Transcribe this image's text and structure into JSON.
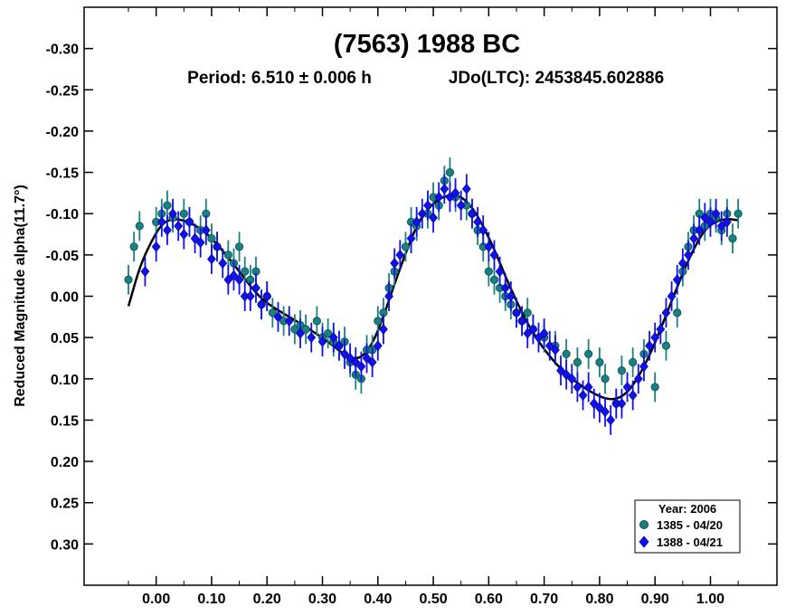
{
  "chart_data": {
    "type": "scatter",
    "title": "(7563) 1988 BC",
    "subtitle_period": "Period: 6.510 ± 0.006 h",
    "subtitle_epoch": "JDo(LTC): 2453845.602886",
    "xlabel": "",
    "ylabel": "Reduced Magnitude alpha(11.7°)",
    "xlim": [
      -0.13,
      1.12
    ],
    "ylim": [
      0.35,
      -0.35
    ],
    "y_inverted": true,
    "x_ticks": [
      "0.00",
      "0.10",
      "0.20",
      "0.30",
      "0.40",
      "0.50",
      "0.60",
      "0.70",
      "0.80",
      "0.90",
      "1.00"
    ],
    "y_ticks": [
      "-0.30",
      "-0.25",
      "-0.20",
      "-0.15",
      "-0.10",
      "-0.05",
      "0.00",
      "0.05",
      "0.10",
      "0.15",
      "0.20",
      "0.25",
      "0.30"
    ],
    "grid": false,
    "legend_position": "bottom-right",
    "legend_title": "Year: 2006",
    "series": [
      {
        "name": "1385 - 04/20",
        "marker": "circle",
        "color": "#1a8080",
        "points": [
          [
            -0.05,
            -0.02
          ],
          [
            -0.04,
            -0.06
          ],
          [
            -0.03,
            -0.085
          ],
          [
            0.0,
            -0.09
          ],
          [
            0.01,
            -0.1
          ],
          [
            0.02,
            -0.11
          ],
          [
            0.03,
            -0.095
          ],
          [
            0.05,
            -0.1
          ],
          [
            0.06,
            -0.09
          ],
          [
            0.08,
            -0.08
          ],
          [
            0.09,
            -0.1
          ],
          [
            0.1,
            -0.07
          ],
          [
            0.11,
            -0.06
          ],
          [
            0.13,
            -0.05
          ],
          [
            0.14,
            -0.04
          ],
          [
            0.15,
            -0.06
          ],
          [
            0.16,
            -0.03
          ],
          [
            0.17,
            -0.02
          ],
          [
            0.18,
            -0.03
          ],
          [
            0.19,
            0.01
          ],
          [
            0.2,
            0.0
          ],
          [
            0.21,
            0.02
          ],
          [
            0.23,
            0.03
          ],
          [
            0.25,
            0.04
          ],
          [
            0.26,
            0.035
          ],
          [
            0.27,
            0.04
          ],
          [
            0.29,
            0.03
          ],
          [
            0.3,
            0.05
          ],
          [
            0.31,
            0.045
          ],
          [
            0.32,
            0.055
          ],
          [
            0.33,
            0.06
          ],
          [
            0.34,
            0.055
          ],
          [
            0.35,
            0.08
          ],
          [
            0.36,
            0.095
          ],
          [
            0.37,
            0.1
          ],
          [
            0.38,
            0.065
          ],
          [
            0.39,
            0.065
          ],
          [
            0.4,
            0.03
          ],
          [
            0.41,
            0.02
          ],
          [
            0.42,
            -0.01
          ],
          [
            0.43,
            -0.03
          ],
          [
            0.45,
            -0.06
          ],
          [
            0.46,
            -0.09
          ],
          [
            0.47,
            -0.085
          ],
          [
            0.49,
            -0.1
          ],
          [
            0.5,
            -0.12
          ],
          [
            0.51,
            -0.11
          ],
          [
            0.52,
            -0.14
          ],
          [
            0.53,
            -0.15
          ],
          [
            0.54,
            -0.12
          ],
          [
            0.56,
            -0.11
          ],
          [
            0.57,
            -0.1
          ],
          [
            0.58,
            -0.08
          ],
          [
            0.59,
            -0.06
          ],
          [
            0.6,
            -0.03
          ],
          [
            0.61,
            -0.02
          ],
          [
            0.62,
            -0.01
          ],
          [
            0.63,
            0.0
          ],
          [
            0.64,
            0.01
          ],
          [
            0.65,
            0.02
          ],
          [
            0.66,
            0.03
          ],
          [
            0.67,
            0.02
          ],
          [
            0.68,
            0.04
          ],
          [
            0.7,
            0.05
          ],
          [
            0.72,
            0.06
          ],
          [
            0.74,
            0.07
          ],
          [
            0.76,
            0.08
          ],
          [
            0.78,
            0.07
          ],
          [
            0.8,
            0.08
          ],
          [
            0.81,
            0.1
          ],
          [
            0.83,
            0.13
          ],
          [
            0.84,
            0.09
          ],
          [
            0.86,
            0.08
          ],
          [
            0.88,
            0.07
          ],
          [
            0.9,
            0.11
          ],
          [
            0.92,
            0.06
          ],
          [
            0.94,
            0.02
          ],
          [
            0.95,
            -0.03
          ],
          [
            0.96,
            -0.06
          ],
          [
            0.97,
            -0.08
          ],
          [
            0.98,
            -0.1
          ],
          [
            0.99,
            -0.085
          ],
          [
            1.0,
            -0.1
          ],
          [
            1.01,
            -0.095
          ],
          [
            1.02,
            -0.08
          ],
          [
            1.03,
            -0.1
          ],
          [
            1.04,
            -0.07
          ],
          [
            1.05,
            -0.1
          ]
        ]
      },
      {
        "name": "1388 - 04/21",
        "marker": "diamond",
        "color": "#1010f0",
        "points": [
          [
            -0.02,
            -0.03
          ],
          [
            0.0,
            -0.06
          ],
          [
            0.01,
            -0.09
          ],
          [
            0.02,
            -0.08
          ],
          [
            0.03,
            -0.1
          ],
          [
            0.04,
            -0.085
          ],
          [
            0.05,
            -0.075
          ],
          [
            0.06,
            -0.09
          ],
          [
            0.07,
            -0.07
          ],
          [
            0.08,
            -0.065
          ],
          [
            0.09,
            -0.08
          ],
          [
            0.1,
            -0.045
          ],
          [
            0.11,
            -0.06
          ],
          [
            0.12,
            -0.04
          ],
          [
            0.13,
            -0.02
          ],
          [
            0.14,
            -0.025
          ],
          [
            0.15,
            -0.02
          ],
          [
            0.16,
            0.0
          ],
          [
            0.17,
            0.0
          ],
          [
            0.18,
            -0.01
          ],
          [
            0.19,
            0.01
          ],
          [
            0.2,
            0.0
          ],
          [
            0.22,
            0.025
          ],
          [
            0.24,
            0.03
          ],
          [
            0.26,
            0.045
          ],
          [
            0.28,
            0.05
          ],
          [
            0.3,
            0.055
          ],
          [
            0.32,
            0.05
          ],
          [
            0.33,
            0.06
          ],
          [
            0.34,
            0.07
          ],
          [
            0.35,
            0.075
          ],
          [
            0.36,
            0.08
          ],
          [
            0.37,
            0.085
          ],
          [
            0.38,
            0.075
          ],
          [
            0.39,
            0.08
          ],
          [
            0.4,
            0.06
          ],
          [
            0.41,
            0.04
          ],
          [
            0.42,
            0.0
          ],
          [
            0.43,
            -0.04
          ],
          [
            0.44,
            -0.05
          ],
          [
            0.46,
            -0.07
          ],
          [
            0.47,
            -0.09
          ],
          [
            0.48,
            -0.1
          ],
          [
            0.49,
            -0.11
          ],
          [
            0.5,
            -0.095
          ],
          [
            0.51,
            -0.12
          ],
          [
            0.52,
            -0.13
          ],
          [
            0.53,
            -0.12
          ],
          [
            0.54,
            -0.125
          ],
          [
            0.55,
            -0.11
          ],
          [
            0.56,
            -0.13
          ],
          [
            0.57,
            -0.1
          ],
          [
            0.58,
            -0.09
          ],
          [
            0.59,
            -0.08
          ],
          [
            0.6,
            -0.06
          ],
          [
            0.61,
            -0.05
          ],
          [
            0.62,
            -0.03
          ],
          [
            0.63,
            -0.01
          ],
          [
            0.64,
            0.0
          ],
          [
            0.65,
            0.02
          ],
          [
            0.66,
            0.03
          ],
          [
            0.67,
            0.045
          ],
          [
            0.68,
            0.04
          ],
          [
            0.69,
            0.05
          ],
          [
            0.7,
            0.045
          ],
          [
            0.71,
            0.06
          ],
          [
            0.72,
            0.065
          ],
          [
            0.73,
            0.09
          ],
          [
            0.74,
            0.095
          ],
          [
            0.75,
            0.1
          ],
          [
            0.76,
            0.11
          ],
          [
            0.77,
            0.12
          ],
          [
            0.78,
            0.11
          ],
          [
            0.79,
            0.13
          ],
          [
            0.8,
            0.135
          ],
          [
            0.81,
            0.14
          ],
          [
            0.82,
            0.15
          ],
          [
            0.83,
            0.13
          ],
          [
            0.84,
            0.13
          ],
          [
            0.85,
            0.11
          ],
          [
            0.86,
            0.12
          ],
          [
            0.87,
            0.1
          ],
          [
            0.88,
            0.085
          ],
          [
            0.89,
            0.06
          ],
          [
            0.9,
            0.05
          ],
          [
            0.91,
            0.04
          ],
          [
            0.92,
            0.02
          ],
          [
            0.93,
            0.0
          ],
          [
            0.94,
            -0.02
          ],
          [
            0.95,
            -0.04
          ],
          [
            0.96,
            -0.05
          ],
          [
            0.97,
            -0.07
          ],
          [
            0.98,
            -0.08
          ],
          [
            0.99,
            -0.095
          ],
          [
            1.0,
            -0.09
          ],
          [
            1.01,
            -0.1
          ],
          [
            1.02,
            -0.085
          ],
          [
            1.03,
            -0.09
          ]
        ]
      }
    ],
    "fit_curve": {
      "color": "#000000",
      "points": [
        [
          -0.05,
          0.012
        ],
        [
          -0.03,
          -0.035
        ],
        [
          -0.01,
          -0.065
        ],
        [
          0.01,
          -0.088
        ],
        [
          0.03,
          -0.094
        ],
        [
          0.05,
          -0.092
        ],
        [
          0.07,
          -0.086
        ],
        [
          0.09,
          -0.077
        ],
        [
          0.11,
          -0.063
        ],
        [
          0.13,
          -0.047
        ],
        [
          0.15,
          -0.03
        ],
        [
          0.17,
          -0.012
        ],
        [
          0.19,
          0.003
        ],
        [
          0.21,
          0.013
        ],
        [
          0.23,
          0.021
        ],
        [
          0.25,
          0.029
        ],
        [
          0.27,
          0.037
        ],
        [
          0.29,
          0.046
        ],
        [
          0.31,
          0.055
        ],
        [
          0.33,
          0.066
        ],
        [
          0.35,
          0.075
        ],
        [
          0.37,
          0.075
        ],
        [
          0.39,
          0.058
        ],
        [
          0.41,
          0.025
        ],
        [
          0.43,
          -0.015
        ],
        [
          0.45,
          -0.052
        ],
        [
          0.47,
          -0.086
        ],
        [
          0.49,
          -0.106
        ],
        [
          0.51,
          -0.118
        ],
        [
          0.53,
          -0.123
        ],
        [
          0.55,
          -0.121
        ],
        [
          0.57,
          -0.108
        ],
        [
          0.59,
          -0.085
        ],
        [
          0.61,
          -0.057
        ],
        [
          0.63,
          -0.024
        ],
        [
          0.65,
          0.006
        ],
        [
          0.67,
          0.033
        ],
        [
          0.69,
          0.055
        ],
        [
          0.71,
          0.073
        ],
        [
          0.73,
          0.088
        ],
        [
          0.75,
          0.1
        ],
        [
          0.77,
          0.11
        ],
        [
          0.79,
          0.118
        ],
        [
          0.81,
          0.124
        ],
        [
          0.83,
          0.125
        ],
        [
          0.85,
          0.117
        ],
        [
          0.87,
          0.098
        ],
        [
          0.89,
          0.072
        ],
        [
          0.91,
          0.04
        ],
        [
          0.93,
          0.006
        ],
        [
          0.95,
          -0.028
        ],
        [
          0.97,
          -0.058
        ],
        [
          0.99,
          -0.081
        ],
        [
          1.01,
          -0.091
        ],
        [
          1.03,
          -0.094
        ],
        [
          1.05,
          -0.092
        ]
      ]
    }
  }
}
